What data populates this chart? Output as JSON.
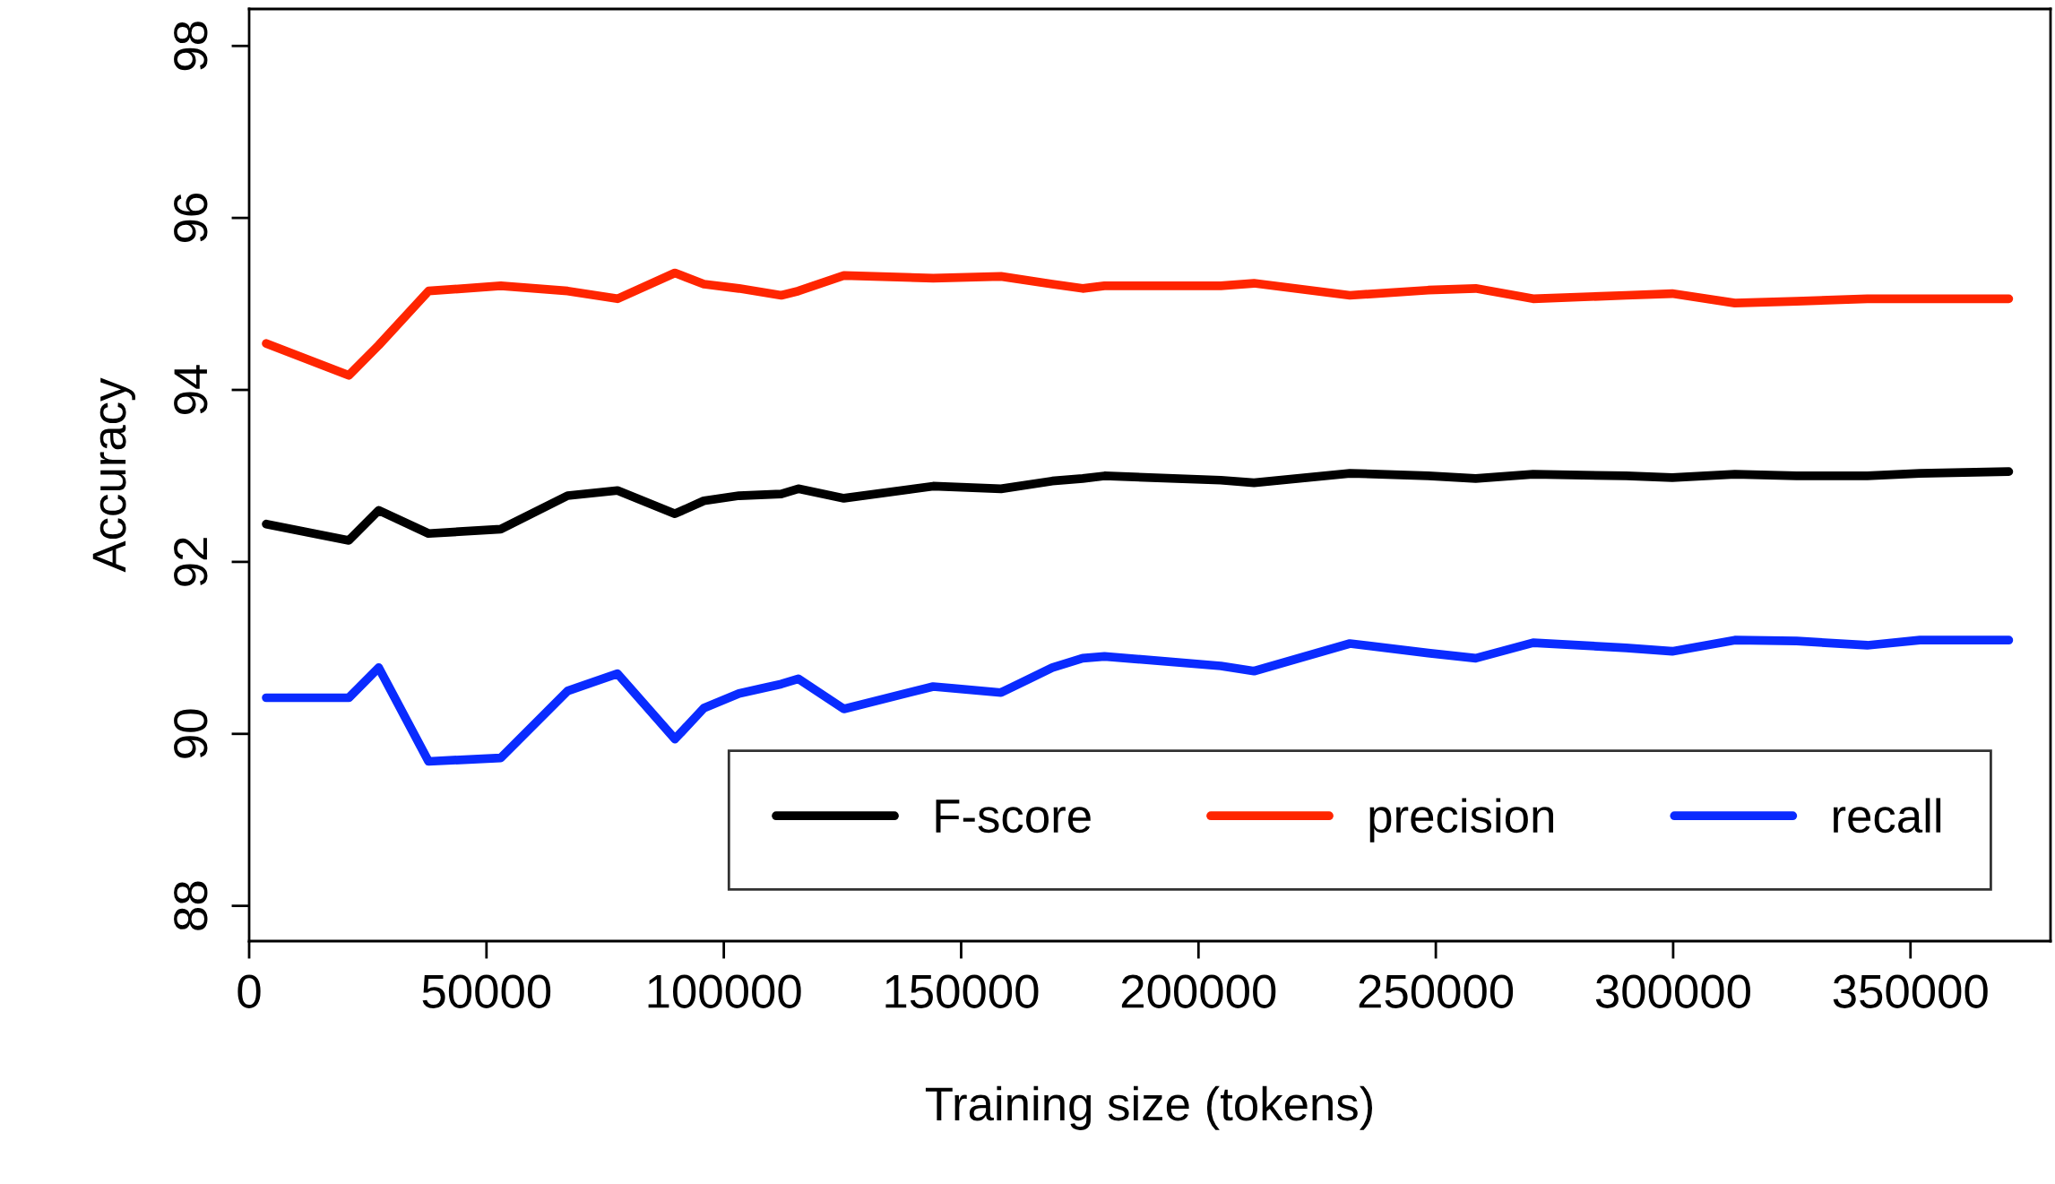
{
  "chart_data": {
    "type": "line",
    "xlabel": "Training size (tokens)",
    "ylabel": "Accuracy",
    "x": [
      3600,
      21000,
      27300,
      37800,
      53000,
      67100,
      77600,
      89700,
      95800,
      103200,
      112100,
      115700,
      125300,
      144100,
      158400,
      169200,
      175600,
      180200,
      204700,
      211700,
      231900,
      248400,
      258400,
      270500,
      290100,
      299800,
      313000,
      326000,
      340900,
      352000,
      370700
    ],
    "series": [
      {
        "name": "F-score",
        "color": "#000000",
        "values": [
          92.44,
          92.25,
          92.6,
          92.33,
          92.38,
          92.77,
          92.83,
          92.56,
          92.71,
          92.77,
          92.79,
          92.85,
          92.74,
          92.88,
          92.85,
          92.94,
          92.97,
          93.0,
          92.95,
          92.92,
          93.03,
          93.0,
          92.97,
          93.02,
          93.0,
          92.98,
          93.02,
          93.0,
          93.0,
          93.03,
          93.05
        ]
      },
      {
        "name": "precision",
        "color": "#ff2500",
        "values": [
          94.54,
          94.17,
          94.52,
          95.15,
          95.21,
          95.15,
          95.06,
          95.36,
          95.23,
          95.18,
          95.1,
          95.15,
          95.33,
          95.3,
          95.32,
          95.23,
          95.18,
          95.21,
          95.21,
          95.24,
          95.1,
          95.16,
          95.18,
          95.06,
          95.1,
          95.12,
          95.01,
          95.03,
          95.06,
          95.06,
          95.06
        ]
      },
      {
        "name": "recall",
        "color": "#0a2bff",
        "values": [
          90.42,
          90.42,
          90.77,
          89.68,
          89.72,
          90.5,
          90.7,
          89.94,
          90.3,
          90.47,
          90.58,
          90.64,
          90.29,
          90.55,
          90.48,
          90.77,
          90.88,
          90.9,
          90.79,
          90.73,
          91.05,
          90.94,
          90.88,
          91.06,
          91.0,
          90.96,
          91.09,
          91.08,
          91.03,
          91.09,
          91.09
        ]
      }
    ],
    "xlim": [
      0,
      379500
    ],
    "xticks": [
      0,
      50000,
      100000,
      150000,
      200000,
      250000,
      300000,
      350000
    ],
    "ylim": [
      87.59,
      98.43
    ],
    "yticks": [
      88,
      90,
      92,
      94,
      96,
      98
    ],
    "grid": false,
    "legend": "bottom right",
    "line_style": "solid",
    "marker": "none"
  }
}
